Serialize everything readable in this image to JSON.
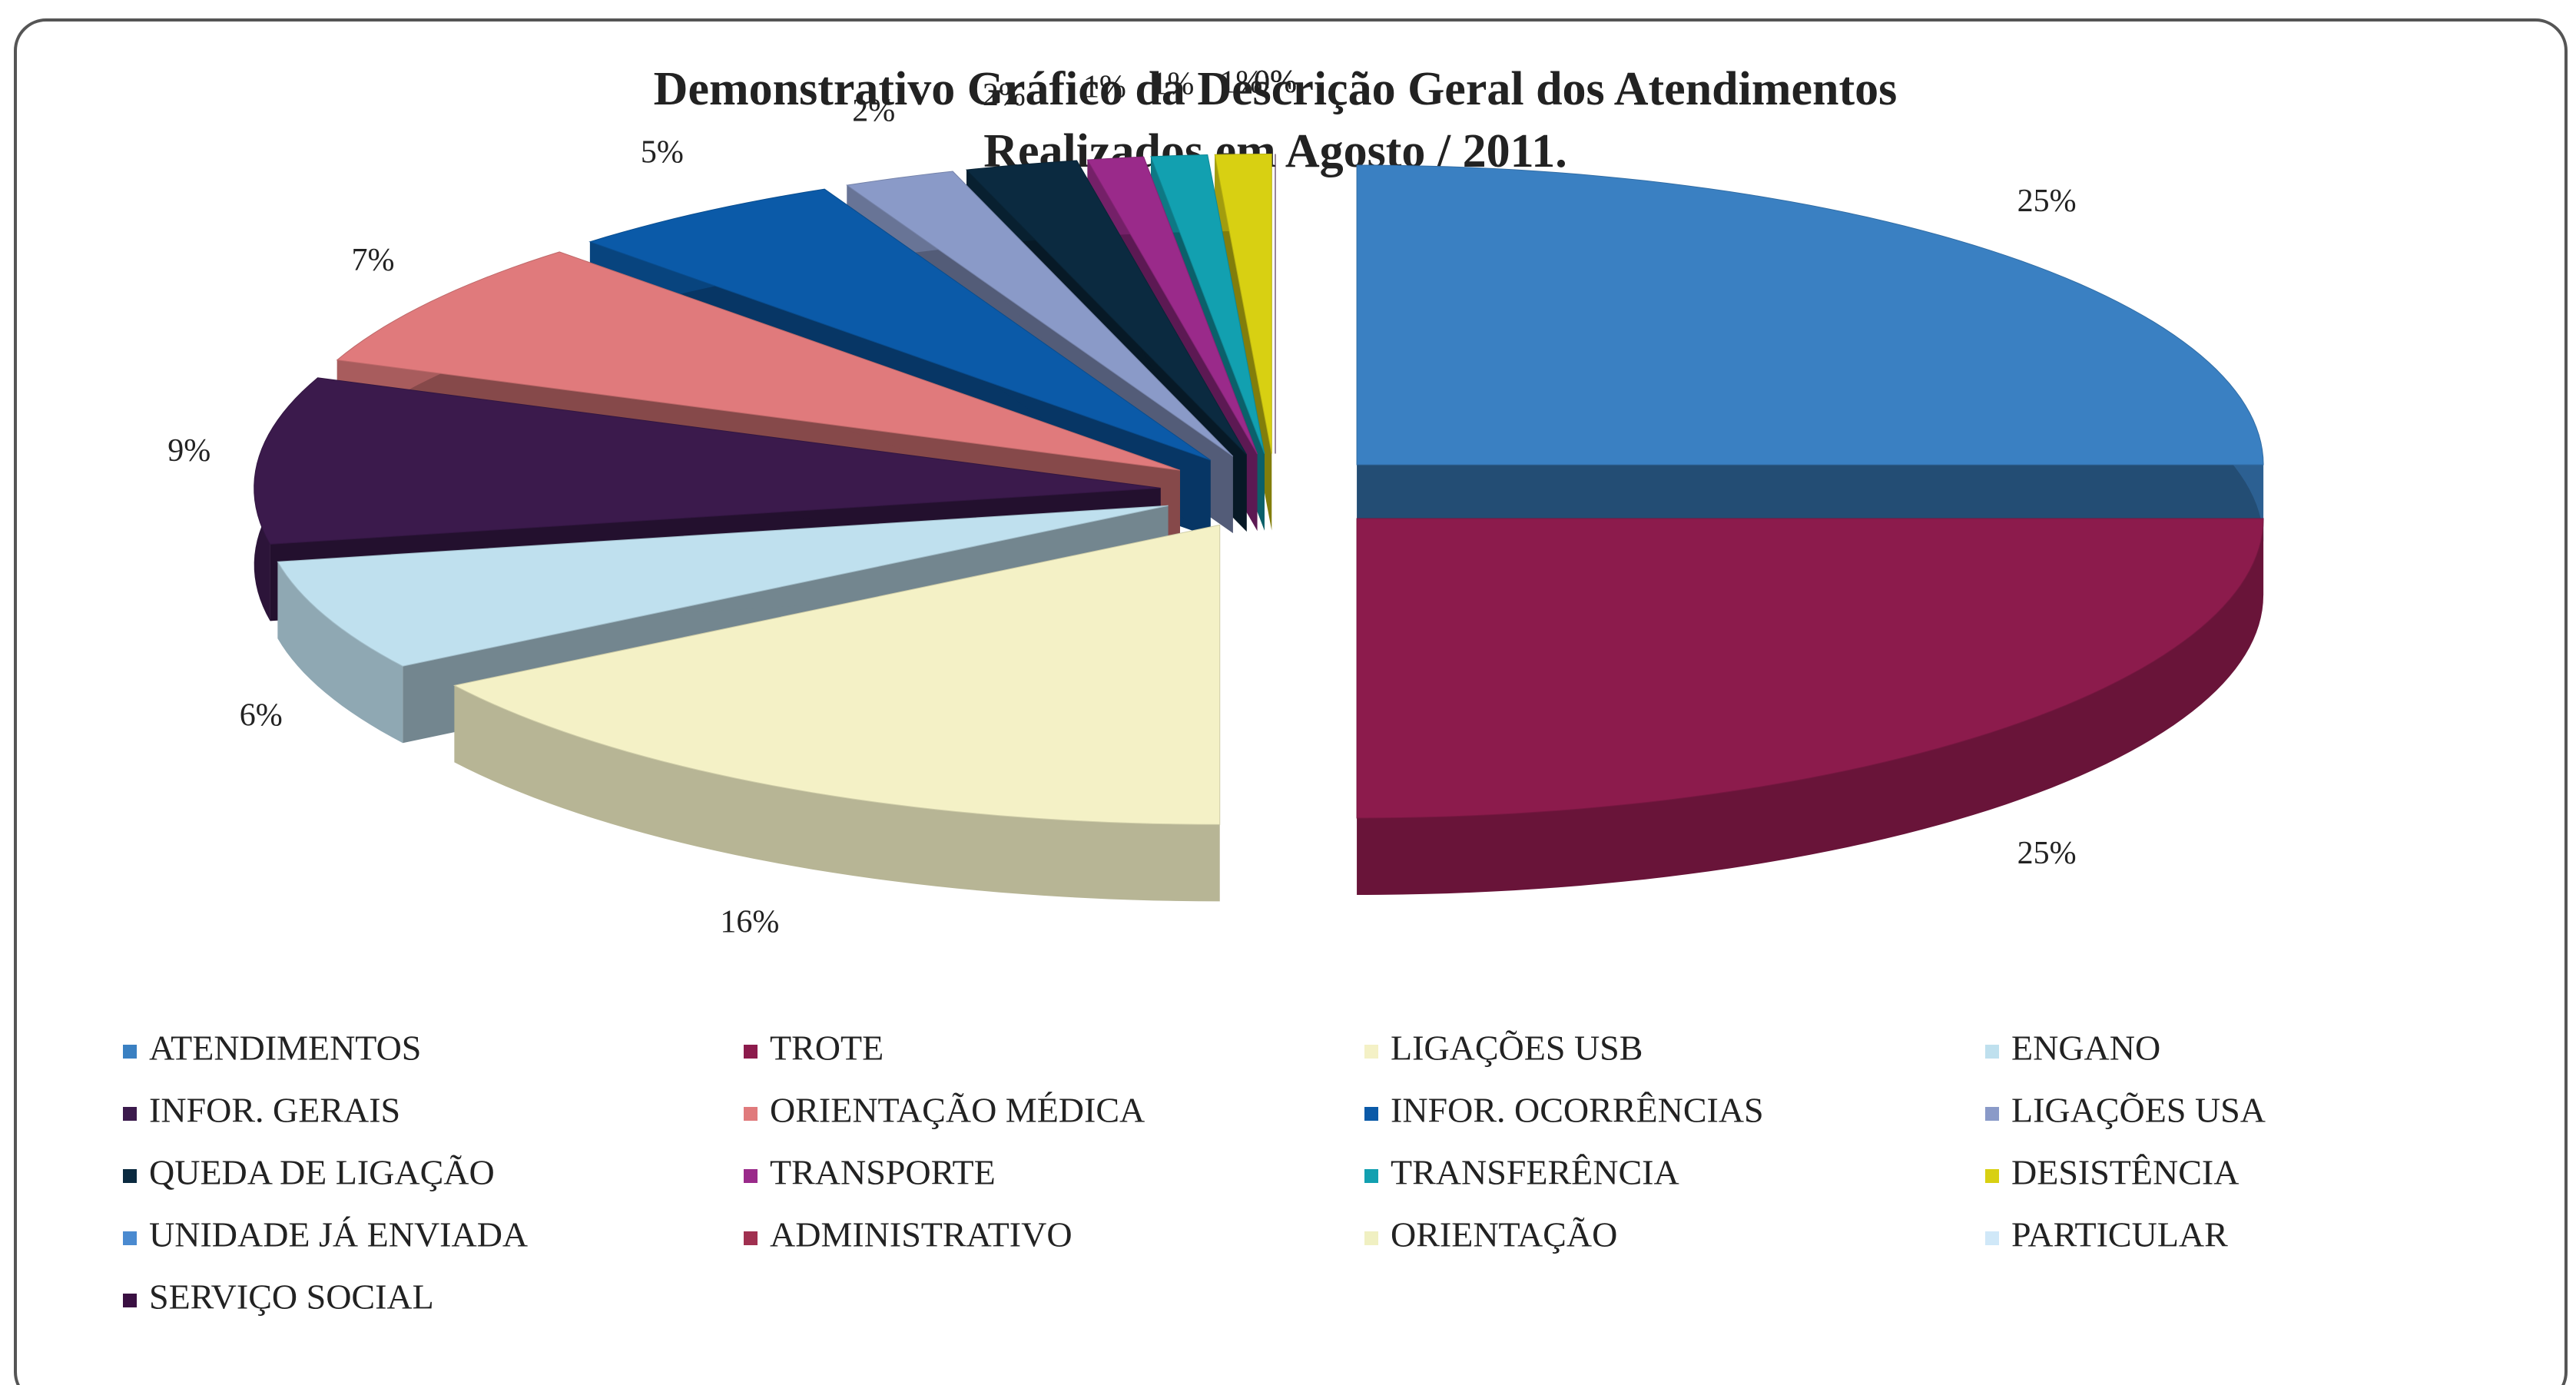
{
  "chart_data": {
    "type": "pie",
    "title": [
      "Demonstrativo Gráfico da Descrição Geral dos Atendimentos",
      "Realizados em Agosto / 2011."
    ],
    "categories": [
      "ATENDIMENTOS",
      "TROTE",
      "LIGAÇÕES USB",
      "ENGANO",
      "INFOR. GERAIS",
      "ORIENTAÇÃO MÉDICA",
      "INFOR. OCORRÊNCIAS",
      "LIGAÇÕES USA",
      "QUEDA DE LIGAÇÃO",
      "TRANSPORTE",
      "TRANSFERÊNCIA",
      "DESISTÊNCIA",
      "UNIDADE JÁ ENVIADA",
      "ADMINISTRATIVO",
      "ORIENTAÇÃO",
      "PARTICULAR",
      "SERVIÇO SOCIAL"
    ],
    "values": [
      25,
      25,
      16,
      6,
      9,
      7,
      5,
      2,
      2,
      1,
      1,
      1,
      0,
      0,
      0,
      0,
      0
    ],
    "value_labels": [
      "25%",
      "25%",
      "16%",
      "6%",
      "9%",
      "7%",
      "5%",
      "2%",
      "2%",
      "1%",
      "1%",
      "1%",
      "0%",
      "0%",
      "0%",
      "0%",
      "0%"
    ],
    "colors": [
      "#3a80c2",
      "#8c1b4c",
      "#f4f1c6",
      "#bfe0ee",
      "#3b1a4c",
      "#e07a7c",
      "#0b5aa8",
      "#8a9ac8",
      "#0b2a40",
      "#9a2a8a",
      "#12a0b0",
      "#d8d012",
      "#4a8ad0",
      "#a03050",
      "#f0f0c2",
      "#d0e8f8",
      "#3a1042"
    ]
  }
}
